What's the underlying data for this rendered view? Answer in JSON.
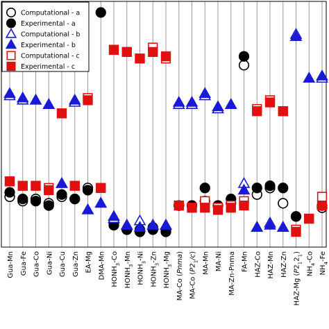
{
  "chart_data": {
    "type": "scatter",
    "title": "",
    "xlabel": "",
    "ylabel": "",
    "ylim": [
      0,
      100
    ],
    "grid": "vertical lines at each category",
    "legend_position": "top-left",
    "categories": [
      "Gua-Mn",
      "Gua-Fe",
      "Gua-Co",
      "Gua-Ni",
      "Gua-Cu",
      "Gua-Zn",
      "EA-Mg",
      "DMA-Mn",
      "HONH3-Co",
      "HONH3-Mn",
      "HONH3-Ni",
      "HONH3-Zn",
      "HONH3-Mg",
      "MA-Co (Pnma)",
      "MA-Co (P21/c)",
      "MA-Mn",
      "MA-Ni",
      "MA-Zn-Pnma",
      "FA-Mn",
      "HAZ-Co",
      "HAZ-Mn",
      "HAZ-Zn",
      "HAZ-Mg (P2121)",
      "NH4-Co",
      "NH4-Fe"
    ],
    "series": [
      {
        "name": "Computational - a",
        "color": "#000000",
        "marker": "circle",
        "filled": false,
        "points": [
          [
            0,
            16
          ],
          [
            1,
            14
          ],
          [
            2,
            15
          ],
          [
            3,
            13
          ],
          [
            4,
            16
          ],
          [
            5,
            15
          ],
          [
            6,
            20
          ],
          [
            8,
            4
          ],
          [
            9,
            1
          ],
          [
            10,
            1
          ],
          [
            11,
            2
          ],
          [
            12,
            1
          ],
          [
            13,
            12
          ],
          [
            14,
            12
          ],
          [
            15,
            14
          ],
          [
            16,
            12
          ],
          [
            17,
            13
          ],
          [
            18,
            76
          ],
          [
            19,
            17
          ],
          [
            20,
            20
          ],
          [
            21,
            13
          ],
          [
            22,
            7
          ],
          [
            24,
            11
          ]
        ]
      },
      {
        "name": "Experimental - a",
        "color": "#000000",
        "marker": "circle",
        "filled": true,
        "points": [
          [
            0,
            18
          ],
          [
            1,
            15
          ],
          [
            2,
            14
          ],
          [
            3,
            12
          ],
          [
            4,
            17
          ],
          [
            5,
            15
          ],
          [
            6,
            19
          ],
          [
            7,
            100
          ],
          [
            8,
            3
          ],
          [
            9,
            1
          ],
          [
            10,
            0
          ],
          [
            11,
            1
          ],
          [
            12,
            0
          ],
          [
            13,
            12
          ],
          [
            14,
            12
          ],
          [
            15,
            20
          ],
          [
            16,
            12
          ],
          [
            17,
            15
          ],
          [
            18,
            80
          ],
          [
            19,
            20
          ],
          [
            20,
            21
          ],
          [
            21,
            20
          ],
          [
            22,
            7
          ],
          [
            24,
            12
          ]
        ]
      },
      {
        "name": "Computational - b",
        "color": "#1a1ad6",
        "marker": "triangle",
        "filled": false,
        "points": [
          [
            0,
            62
          ],
          [
            1,
            60
          ],
          [
            2,
            60
          ],
          [
            3,
            58
          ],
          [
            4,
            22
          ],
          [
            5,
            59
          ],
          [
            6,
            10
          ],
          [
            7,
            13
          ],
          [
            8,
            6
          ],
          [
            9,
            3
          ],
          [
            10,
            5
          ],
          [
            11,
            3
          ],
          [
            12,
            3
          ],
          [
            13,
            58
          ],
          [
            14,
            58
          ],
          [
            15,
            62
          ],
          [
            16,
            56
          ],
          [
            17,
            58
          ],
          [
            18,
            22
          ],
          [
            19,
            2
          ],
          [
            20,
            4
          ],
          [
            21,
            2
          ],
          [
            22,
            90
          ],
          [
            23,
            70
          ],
          [
            24,
            70
          ]
        ]
      },
      {
        "name": "Experimental - b",
        "color": "#1a1ad6",
        "marker": "triangle",
        "filled": true,
        "points": [
          [
            0,
            63
          ],
          [
            1,
            61
          ],
          [
            2,
            60
          ],
          [
            3,
            58
          ],
          [
            4,
            22
          ],
          [
            5,
            60
          ],
          [
            6,
            10
          ],
          [
            7,
            13
          ],
          [
            8,
            7
          ],
          [
            9,
            3
          ],
          [
            10,
            2
          ],
          [
            11,
            3
          ],
          [
            12,
            3
          ],
          [
            13,
            59
          ],
          [
            14,
            59
          ],
          [
            15,
            63
          ],
          [
            16,
            57
          ],
          [
            17,
            58
          ],
          [
            18,
            19
          ],
          [
            19,
            2
          ],
          [
            20,
            3
          ],
          [
            21,
            2
          ],
          [
            22,
            89
          ],
          [
            23,
            70
          ],
          [
            24,
            71
          ]
        ]
      },
      {
        "name": "Computational - c",
        "color": "#e01010",
        "marker": "square",
        "filled": false,
        "points": [
          [
            0,
            23
          ],
          [
            1,
            21
          ],
          [
            2,
            21
          ],
          [
            3,
            20
          ],
          [
            4,
            54
          ],
          [
            5,
            21
          ],
          [
            6,
            61
          ],
          [
            7,
            20
          ],
          [
            8,
            83
          ],
          [
            9,
            82
          ],
          [
            10,
            79
          ],
          [
            11,
            84
          ],
          [
            12,
            79
          ],
          [
            13,
            12
          ],
          [
            14,
            11
          ],
          [
            15,
            14
          ],
          [
            16,
            11
          ],
          [
            17,
            12
          ],
          [
            18,
            14
          ],
          [
            19,
            56
          ],
          [
            20,
            60
          ],
          [
            21,
            55
          ],
          [
            22,
            1
          ],
          [
            23,
            6
          ],
          [
            24,
            16
          ]
        ]
      },
      {
        "name": "Experimental - c",
        "color": "#e01010",
        "marker": "square",
        "filled": true,
        "points": [
          [
            0,
            23
          ],
          [
            1,
            21
          ],
          [
            2,
            21
          ],
          [
            3,
            19
          ],
          [
            4,
            54
          ],
          [
            5,
            21
          ],
          [
            6,
            60
          ],
          [
            7,
            20
          ],
          [
            8,
            83
          ],
          [
            9,
            82
          ],
          [
            10,
            79
          ],
          [
            11,
            82
          ],
          [
            12,
            80
          ],
          [
            13,
            12
          ],
          [
            14,
            11
          ],
          [
            15,
            11
          ],
          [
            16,
            10
          ],
          [
            17,
            11
          ],
          [
            18,
            12
          ],
          [
            19,
            55
          ],
          [
            20,
            59
          ],
          [
            21,
            55
          ],
          [
            22,
            0
          ],
          [
            23,
            6
          ],
          [
            24,
            12
          ]
        ]
      }
    ]
  }
}
